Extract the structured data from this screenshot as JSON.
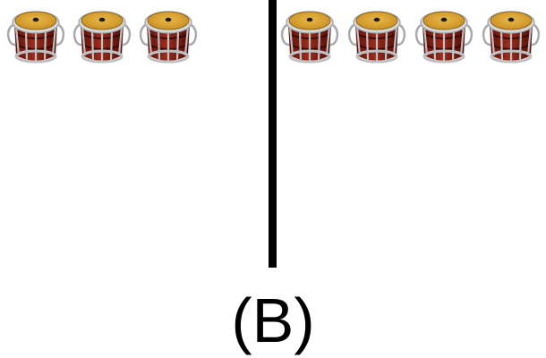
{
  "figure": {
    "option_label": "(B)",
    "left_group": {
      "count": 3,
      "icon": "drum-icon"
    },
    "right_group": {
      "count": 4,
      "icon": "drum-icon"
    },
    "colors": {
      "drum_head": "#D9A230",
      "drum_body": "#8E2318",
      "drum_frame": "#BFC0C2",
      "divider": "#000000"
    }
  }
}
